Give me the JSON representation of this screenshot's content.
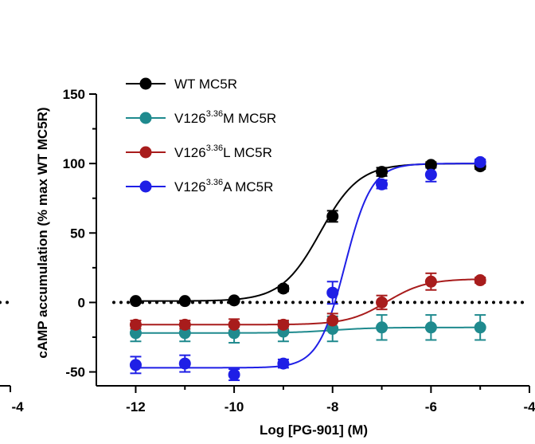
{
  "chart_data": {
    "type": "scatter",
    "title": "",
    "xlabel": "Log [PG-901] (M)",
    "ylabel": "cAMP accumulation (% max WT MC5R)",
    "xlim": [
      -12.8,
      -4.0
    ],
    "ylim": [
      -60,
      150
    ],
    "x_ticks": [
      -12,
      -10,
      -8,
      -6,
      -4
    ],
    "x_tick_labels": [
      "-12",
      "-10",
      "-8",
      "-6",
      "-4"
    ],
    "y_ticks": [
      -50,
      0,
      50,
      100,
      150
    ],
    "y_tick_labels": [
      "-50",
      "0",
      "50",
      "100",
      "150"
    ],
    "left_panel_tick_label": "-4",
    "reference_line": {
      "y": 0,
      "style": "dotted"
    },
    "legend_position": "top-left",
    "x": [
      -12,
      -11,
      -10,
      -9,
      -8,
      -7,
      -6,
      -5
    ],
    "series": [
      {
        "name": "WT MC5R",
        "label_parts": [
          "WT MC5R"
        ],
        "color": "#000000",
        "values": [
          1,
          1,
          1.5,
          10,
          62,
          94,
          99,
          98
        ],
        "errors": [
          1,
          1,
          1,
          2,
          4,
          3,
          2,
          2
        ],
        "fit": {
          "bottom": 1,
          "top": 100,
          "logEC50": -8.25,
          "hill": 1.1
        }
      },
      {
        "name": "V126 3.36 M MC5R",
        "label_parts": [
          "V126",
          "3.36",
          "M MC5R"
        ],
        "color": "#1f8a8e",
        "values": [
          -22,
          -22,
          -22,
          -21,
          -19,
          -18,
          -18,
          -18
        ],
        "errors": [
          6,
          6,
          7,
          7,
          9,
          9,
          9,
          9
        ],
        "fit": {
          "bottom": -22,
          "top": -18,
          "logEC50": -8.0,
          "hill": 1.0
        }
      },
      {
        "name": "V126 3.36 L MC5R",
        "label_parts": [
          "V126",
          "3.36",
          "L MC5R"
        ],
        "color": "#a81c1c",
        "values": [
          -16,
          -16,
          -16,
          -16,
          -13,
          0,
          15,
          16
        ],
        "errors": [
          3,
          3,
          4,
          3,
          5,
          5,
          6,
          2
        ],
        "fit": {
          "bottom": -16,
          "top": 17,
          "logEC50": -6.9,
          "hill": 1.1
        }
      },
      {
        "name": "V126 3.36 A MC5R",
        "label_parts": [
          "V126",
          "3.36",
          "A MC5R"
        ],
        "color": "#1f1fe6",
        "values": [
          -45,
          -44,
          -52,
          -44,
          7,
          85,
          92,
          101
        ],
        "errors": [
          6,
          6,
          4,
          3,
          8,
          3,
          5,
          2
        ],
        "fit": {
          "bottom": -47,
          "top": 100,
          "logEC50": -7.75,
          "hill": 1.6
        }
      }
    ]
  }
}
